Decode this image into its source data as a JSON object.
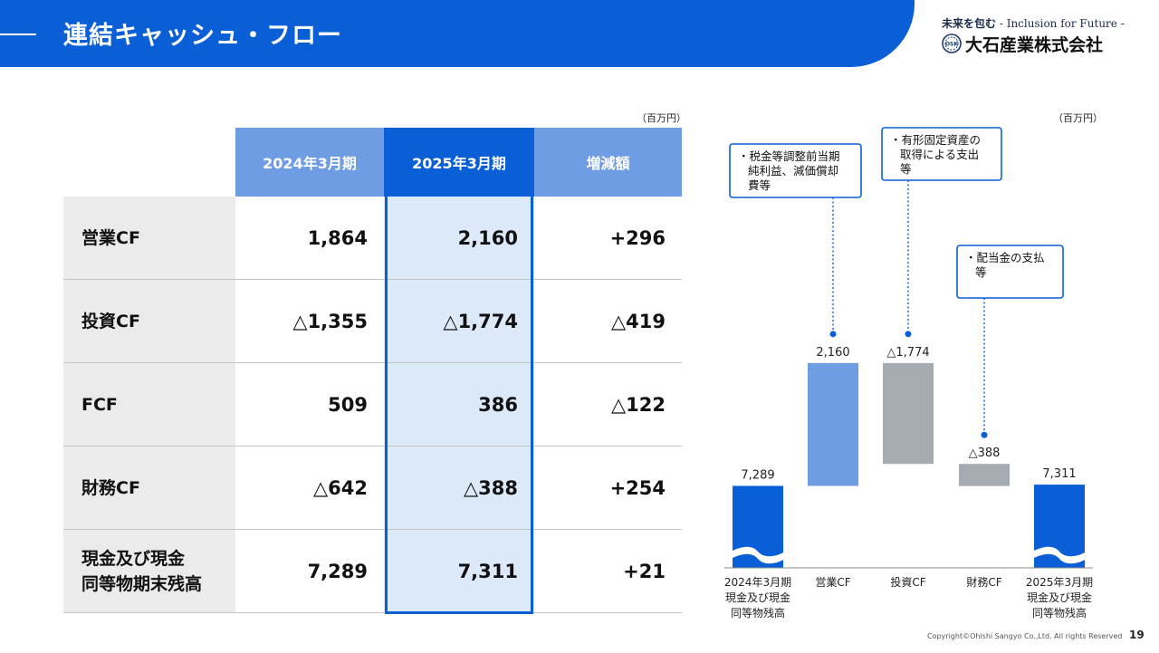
{
  "slide": {
    "title": "連結キャッシュ・フロー",
    "tagline_jp": "未来を包む",
    "tagline_en": " - Inclusion for Future -",
    "company": "大石産業株式会社",
    "logo_mark": "OSK",
    "copyright": "Copyright©Ohishi Sangyo Co.,Ltd. All rights Reserved",
    "page": "19"
  },
  "table": {
    "unit": "（百万円）",
    "headers": [
      "2024年3月期",
      "2025年3月期",
      "増減額"
    ],
    "rows": [
      {
        "label": "営業CF",
        "values": [
          "1,864",
          "2,160",
          "+296"
        ]
      },
      {
        "label": "投資CF",
        "values": [
          "△1,355",
          "△1,774",
          "△419"
        ]
      },
      {
        "label": "FCF",
        "values": [
          "509",
          "386",
          "△122"
        ]
      },
      {
        "label": "財務CF",
        "values": [
          "△642",
          "△388",
          "+254"
        ]
      },
      {
        "label": "現金及び現金\n同等物期末残高",
        "values": [
          "7,289",
          "7,311",
          "+21"
        ]
      }
    ]
  },
  "chart_data": {
    "type": "bar",
    "unit": "（百万円）",
    "categories": [
      "2024年3月期\n現金及び現金\n同等物残高",
      "営業CF",
      "投資CF",
      "財務CF",
      "2025年3月期\n現金及び現金\n同等物残高"
    ],
    "values": [
      7289,
      2160,
      -1774,
      -388,
      7311
    ],
    "value_labels": [
      "7,289",
      "2,160",
      "△1,774",
      "△388",
      "7,311"
    ],
    "axis_break": true,
    "colors": {
      "total": "#0a5fd6",
      "increase": "#6e9de4",
      "decrease": "#a6abb2"
    },
    "annotations": [
      {
        "category": "営業CF",
        "text": "・税金等調整前当期\n純利益、減価償却\n費等"
      },
      {
        "category": "投資CF",
        "text": "・有形固定資産の\n取得による支出\n等"
      },
      {
        "category": "財務CF",
        "text": "・配当金の支払\n等"
      }
    ]
  }
}
